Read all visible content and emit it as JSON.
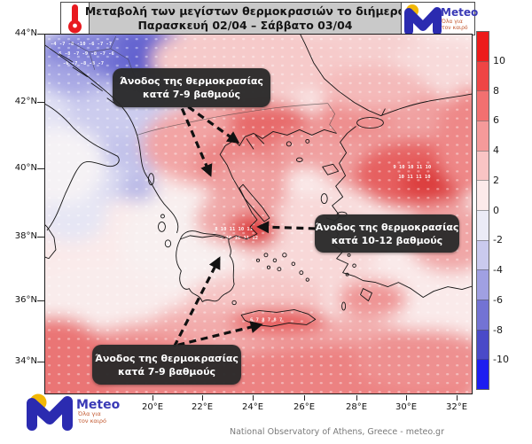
{
  "header": {
    "title_line1": "Μεταβολή των μεγίστων θερμοκρασιών το διήμερο",
    "title_line2": "Παρασκευή 02/04 – Σάββατο 03/04"
  },
  "logo": {
    "name": "Meteo",
    "tagline_line1": "Όλα για",
    "tagline_line2": "τον καιρό",
    "brand_blue": "#2b2bb0",
    "brand_yellow": "#f2b705"
  },
  "map": {
    "lat_labels": [
      "44°N",
      "42°N",
      "40°N",
      "38°N",
      "36°N",
      "34°N"
    ],
    "lon_labels": [
      "20°E",
      "22°E",
      "24°E",
      "26°E",
      "28°E",
      "30°E",
      "32°E"
    ],
    "annotations": [
      {
        "line1": "Άνοδος της θερμοκρασίας",
        "line2": "κατά 7-9 βαθμούς"
      },
      {
        "line1": "Άνοδος της θερμοκρασίας",
        "line2": "κατά 10-12 βαθμούς"
      },
      {
        "line1": "Άνοδος της θερμοκρασίας",
        "line2": "κατά 7-9 βαθμούς"
      }
    ],
    "station_rows": [
      {
        "text": "-4 -7 -8 -10 -6 -7 -7"
      },
      {
        "text": "-5 -8 -7 -9 -8 -7 -6"
      },
      {
        "text": "-6 -7 -8 -8 -7"
      },
      {
        "text": "8 10 11 10 11"
      },
      {
        "text": "9 10 10 11 12"
      },
      {
        "text": "9 10 10 11 10"
      },
      {
        "text": "10 11 11 10"
      },
      {
        "text": "5 6 8 8 8 6"
      },
      {
        "text": "6 7 8 7 8 7"
      }
    ]
  },
  "colorbar": {
    "tick_labels": [
      "10",
      "8",
      "6",
      "4",
      "2",
      "0",
      "-2",
      "-4",
      "-6",
      "-8",
      "-10"
    ],
    "colors": [
      "#ed1b1b",
      "#ef4545",
      "#f27070",
      "#f59a9a",
      "#f9c4c4",
      "#fceaea",
      "#ebebf6",
      "#cacaee",
      "#a0a0e2",
      "#7373d4",
      "#4a4ac8",
      "#1d1df0"
    ]
  },
  "footer": {
    "credit": "National Observatory of Athens, Greece - meteo.gr"
  }
}
